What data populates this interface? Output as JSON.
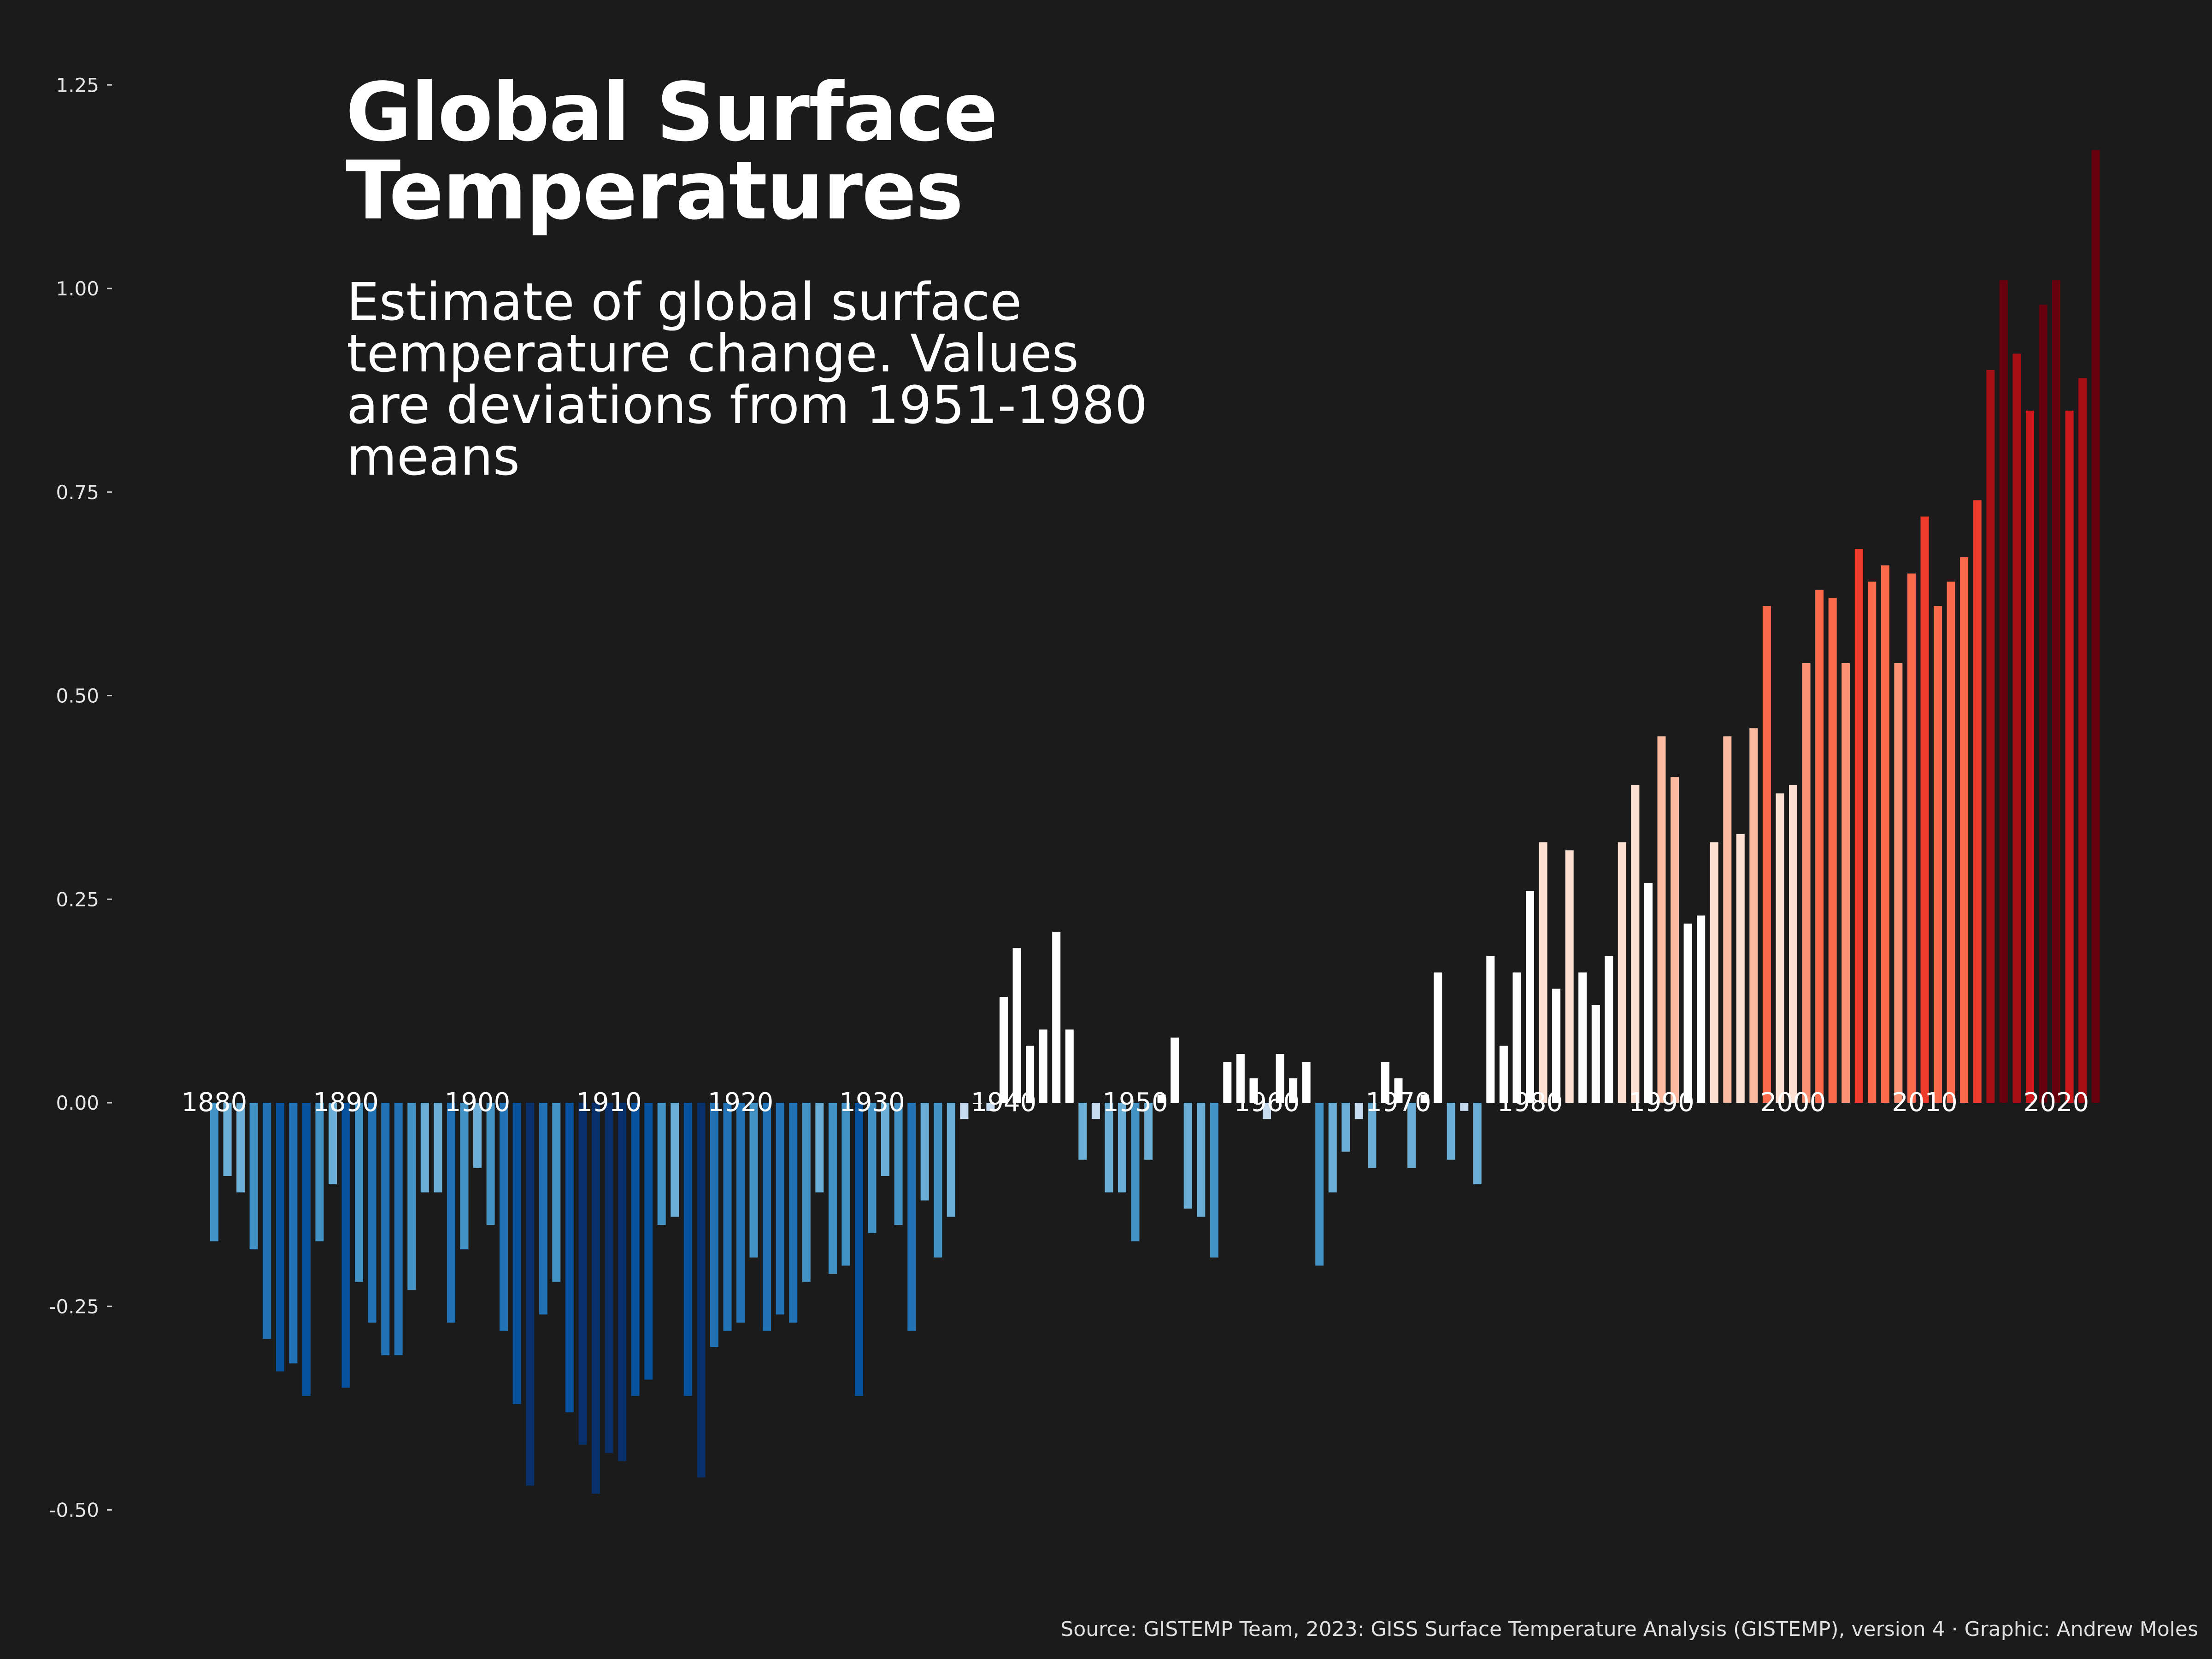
{
  "title": "Global Surface Temperatures",
  "subtitle": "Estimate of global surface temperature change. Values are deviations from 1951-1980 means",
  "caption": "Source: GISTEMP Team, 2023: GISS Surface Temperature Analysis (GISTEMP), version 4 · Graphic: Andrew Moles",
  "colors": {
    "background": "#1b1b1b",
    "text": "#ffffff",
    "negative_scale": [
      "#c6dbef",
      "#6baed6",
      "#4292c6",
      "#2171b5",
      "#08519c",
      "#08306b"
    ],
    "positive_scale": [
      "#ffffff",
      "#fee0d2",
      "#fcbba1",
      "#fc9272",
      "#fb6a4a",
      "#ef3b2c",
      "#cb181d",
      "#a50f15",
      "#67000d"
    ]
  },
  "chart_data": {
    "type": "bar",
    "x_start": 1880,
    "x": [
      1880,
      1881,
      1882,
      1883,
      1884,
      1885,
      1886,
      1887,
      1888,
      1889,
      1890,
      1891,
      1892,
      1893,
      1894,
      1895,
      1896,
      1897,
      1898,
      1899,
      1900,
      1901,
      1902,
      1903,
      1904,
      1905,
      1906,
      1907,
      1908,
      1909,
      1910,
      1911,
      1912,
      1913,
      1914,
      1915,
      1916,
      1917,
      1918,
      1919,
      1920,
      1921,
      1922,
      1923,
      1924,
      1925,
      1926,
      1927,
      1928,
      1929,
      1930,
      1931,
      1932,
      1933,
      1934,
      1935,
      1936,
      1937,
      1938,
      1939,
      1940,
      1941,
      1942,
      1943,
      1944,
      1945,
      1946,
      1947,
      1948,
      1949,
      1950,
      1951,
      1952,
      1953,
      1954,
      1955,
      1956,
      1957,
      1958,
      1959,
      1960,
      1961,
      1962,
      1963,
      1964,
      1965,
      1966,
      1967,
      1968,
      1969,
      1970,
      1971,
      1972,
      1973,
      1974,
      1975,
      1976,
      1977,
      1978,
      1979,
      1980,
      1981,
      1982,
      1983,
      1984,
      1985,
      1986,
      1987,
      1988,
      1989,
      1990,
      1991,
      1992,
      1993,
      1994,
      1995,
      1996,
      1997,
      1998,
      1999,
      2000,
      2001,
      2002,
      2003,
      2004,
      2005,
      2006,
      2007,
      2008,
      2009,
      2010,
      2011,
      2012,
      2013,
      2014,
      2015,
      2016,
      2017,
      2018,
      2019,
      2020,
      2021,
      2022,
      2023
    ],
    "values": [
      -0.17,
      -0.09,
      -0.11,
      -0.18,
      -0.29,
      -0.33,
      -0.32,
      -0.36,
      -0.17,
      -0.1,
      -0.35,
      -0.22,
      -0.27,
      -0.31,
      -0.31,
      -0.23,
      -0.11,
      -0.11,
      -0.27,
      -0.18,
      -0.08,
      -0.15,
      -0.28,
      -0.37,
      -0.47,
      -0.26,
      -0.22,
      -0.38,
      -0.42,
      -0.48,
      -0.43,
      -0.44,
      -0.36,
      -0.34,
      -0.15,
      -0.14,
      -0.36,
      -0.46,
      -0.3,
      -0.28,
      -0.27,
      -0.19,
      -0.28,
      -0.26,
      -0.27,
      -0.22,
      -0.11,
      -0.21,
      -0.2,
      -0.36,
      -0.16,
      -0.09,
      -0.15,
      -0.28,
      -0.12,
      -0.19,
      -0.14,
      -0.02,
      -0.0,
      -0.01,
      0.13,
      0.19,
      0.07,
      0.09,
      0.21,
      0.09,
      -0.07,
      -0.02,
      -0.11,
      -0.11,
      -0.17,
      -0.07,
      0.01,
      0.08,
      -0.13,
      -0.14,
      -0.19,
      0.05,
      0.06,
      0.03,
      -0.02,
      0.06,
      0.03,
      0.05,
      -0.2,
      -0.11,
      -0.06,
      -0.02,
      -0.08,
      0.05,
      0.03,
      -0.08,
      0.01,
      0.16,
      -0.07,
      -0.01,
      -0.1,
      0.18,
      0.07,
      0.16,
      0.26,
      0.32,
      0.14,
      0.31,
      0.16,
      0.12,
      0.18,
      0.32,
      0.39,
      0.27,
      0.45,
      0.4,
      0.22,
      0.23,
      0.32,
      0.45,
      0.33,
      0.46,
      0.61,
      0.38,
      0.39,
      0.54,
      0.63,
      0.62,
      0.54,
      0.68,
      0.64,
      0.66,
      0.54,
      0.65,
      0.72,
      0.61,
      0.64,
      0.67,
      0.74,
      0.9,
      1.01,
      0.92,
      0.85,
      0.98,
      1.01,
      0.85,
      0.89,
      1.17
    ],
    "xlabel": "",
    "ylabel": "",
    "ylim": [
      -0.6,
      1.3
    ],
    "yticks": [
      -0.5,
      -0.25,
      0.0,
      0.25,
      0.5,
      0.75,
      1.0,
      1.25
    ],
    "ytick_labels": [
      "-0.50",
      "-0.25",
      "0.00",
      "0.25",
      "0.50",
      "0.75",
      "1.00",
      "1.25"
    ],
    "xtick_labels": [
      "1880",
      "1890",
      "1900",
      "1910",
      "1920",
      "1930",
      "1940",
      "1950",
      "1960",
      "1970",
      "1980",
      "1990",
      "2000",
      "2010",
      "2020"
    ],
    "xtick_years": [
      1880,
      1890,
      1900,
      1910,
      1920,
      1930,
      1940,
      1950,
      1960,
      1970,
      1980,
      1990,
      2000,
      2010,
      2020
    ],
    "legend": "none",
    "grid": false
  }
}
